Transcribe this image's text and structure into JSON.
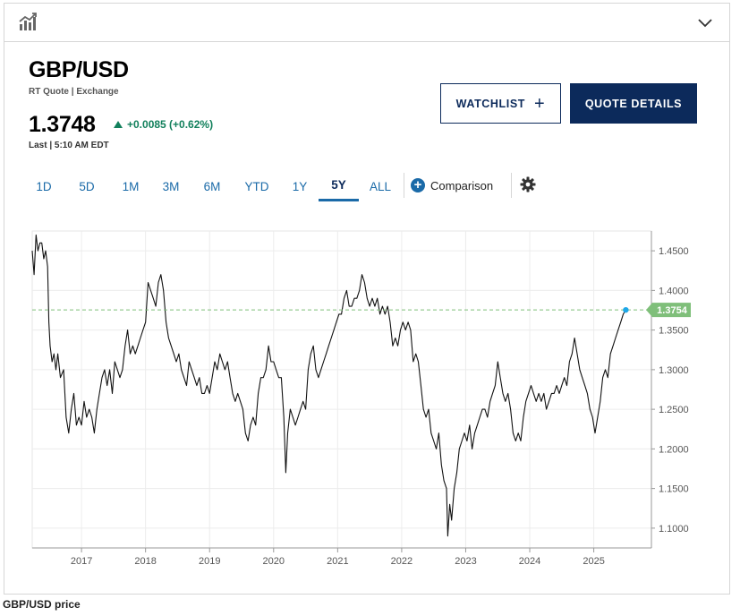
{
  "icons": {
    "chart": "chart-icon",
    "collapse": "chevron-down-icon",
    "settings": "gear-icon",
    "add": "plus-icon"
  },
  "quote": {
    "symbol": "GBP/USD",
    "quote_type": "RT Quote | Exchange",
    "price": "1.3748",
    "change": "+0.0085 (+0.62%)",
    "timestamp": "Last | 5:10 AM EDT",
    "change_color": "#12805c"
  },
  "buttons": {
    "watchlist": "WATCHLIST",
    "quote_details": "QUOTE DETAILS"
  },
  "ranges": [
    "1D",
    "5D",
    "1M",
    "3M",
    "6M",
    "YTD",
    "1Y",
    "5Y",
    "ALL"
  ],
  "active_range": "5Y",
  "comparison_label": "Comparison",
  "caption": "GBP/USD price",
  "colors": {
    "brand_navy": "#0c2a5b",
    "link_blue": "#1a6aa8",
    "last_price_badge": "#7fbf7a",
    "line": "#111111"
  },
  "chart_data": {
    "type": "line",
    "title": "",
    "xlabel": "",
    "ylabel": "",
    "x_ticks": [
      "2017",
      "2018",
      "2019",
      "2020",
      "2021",
      "2022",
      "2023",
      "2024",
      "2025"
    ],
    "y_ticks": [
      "1.4500",
      "1.4000",
      "1.3500",
      "1.3000",
      "1.2500",
      "1.2000",
      "1.1500",
      "1.1000"
    ],
    "xlim": [
      2016.23,
      2025.9
    ],
    "ylim": [
      1.075,
      1.475
    ],
    "grid": true,
    "last_value_label": "1.3754",
    "last_value": 1.3754,
    "series": [
      {
        "points": [
          [
            2016.23,
            1.45
          ],
          [
            2016.26,
            1.42
          ],
          [
            2016.29,
            1.47
          ],
          [
            2016.32,
            1.45
          ],
          [
            2016.35,
            1.46
          ],
          [
            2016.38,
            1.46
          ],
          [
            2016.41,
            1.44
          ],
          [
            2016.44,
            1.45
          ],
          [
            2016.47,
            1.43
          ],
          [
            2016.49,
            1.36
          ],
          [
            2016.51,
            1.33
          ],
          [
            2016.54,
            1.31
          ],
          [
            2016.57,
            1.32
          ],
          [
            2016.6,
            1.3
          ],
          [
            2016.63,
            1.32
          ],
          [
            2016.67,
            1.29
          ],
          [
            2016.72,
            1.3
          ],
          [
            2016.76,
            1.24
          ],
          [
            2016.8,
            1.22
          ],
          [
            2016.84,
            1.25
          ],
          [
            2016.88,
            1.27
          ],
          [
            2016.92,
            1.23
          ],
          [
            2016.96,
            1.24
          ],
          [
            2017.0,
            1.23
          ],
          [
            2017.04,
            1.26
          ],
          [
            2017.08,
            1.24
          ],
          [
            2017.12,
            1.25
          ],
          [
            2017.16,
            1.24
          ],
          [
            2017.2,
            1.22
          ],
          [
            2017.24,
            1.25
          ],
          [
            2017.28,
            1.27
          ],
          [
            2017.32,
            1.29
          ],
          [
            2017.36,
            1.3
          ],
          [
            2017.4,
            1.28
          ],
          [
            2017.44,
            1.3
          ],
          [
            2017.48,
            1.27
          ],
          [
            2017.52,
            1.31
          ],
          [
            2017.56,
            1.3
          ],
          [
            2017.6,
            1.29
          ],
          [
            2017.64,
            1.3
          ],
          [
            2017.68,
            1.33
          ],
          [
            2017.72,
            1.35
          ],
          [
            2017.76,
            1.32
          ],
          [
            2017.8,
            1.33
          ],
          [
            2017.84,
            1.32
          ],
          [
            2017.88,
            1.33
          ],
          [
            2017.92,
            1.34
          ],
          [
            2017.96,
            1.35
          ],
          [
            2018.0,
            1.36
          ],
          [
            2018.04,
            1.41
          ],
          [
            2018.08,
            1.4
          ],
          [
            2018.12,
            1.39
          ],
          [
            2018.16,
            1.38
          ],
          [
            2018.2,
            1.41
          ],
          [
            2018.24,
            1.42
          ],
          [
            2018.28,
            1.4
          ],
          [
            2018.32,
            1.36
          ],
          [
            2018.36,
            1.34
          ],
          [
            2018.4,
            1.33
          ],
          [
            2018.44,
            1.32
          ],
          [
            2018.48,
            1.31
          ],
          [
            2018.52,
            1.32
          ],
          [
            2018.56,
            1.3
          ],
          [
            2018.6,
            1.29
          ],
          [
            2018.64,
            1.28
          ],
          [
            2018.68,
            1.31
          ],
          [
            2018.72,
            1.3
          ],
          [
            2018.76,
            1.29
          ],
          [
            2018.8,
            1.28
          ],
          [
            2018.84,
            1.29
          ],
          [
            2018.88,
            1.27
          ],
          [
            2018.92,
            1.27
          ],
          [
            2018.96,
            1.28
          ],
          [
            2019.0,
            1.27
          ],
          [
            2019.04,
            1.29
          ],
          [
            2019.08,
            1.31
          ],
          [
            2019.12,
            1.3
          ],
          [
            2019.16,
            1.32
          ],
          [
            2019.2,
            1.31
          ],
          [
            2019.24,
            1.3
          ],
          [
            2019.28,
            1.31
          ],
          [
            2019.32,
            1.29
          ],
          [
            2019.36,
            1.27
          ],
          [
            2019.4,
            1.26
          ],
          [
            2019.44,
            1.27
          ],
          [
            2019.48,
            1.26
          ],
          [
            2019.52,
            1.25
          ],
          [
            2019.56,
            1.22
          ],
          [
            2019.6,
            1.21
          ],
          [
            2019.64,
            1.23
          ],
          [
            2019.68,
            1.24
          ],
          [
            2019.72,
            1.23
          ],
          [
            2019.76,
            1.27
          ],
          [
            2019.8,
            1.29
          ],
          [
            2019.84,
            1.29
          ],
          [
            2019.88,
            1.3
          ],
          [
            2019.92,
            1.33
          ],
          [
            2019.96,
            1.31
          ],
          [
            2020.0,
            1.31
          ],
          [
            2020.04,
            1.3
          ],
          [
            2020.08,
            1.29
          ],
          [
            2020.12,
            1.29
          ],
          [
            2020.16,
            1.24
          ],
          [
            2020.19,
            1.17
          ],
          [
            2020.22,
            1.22
          ],
          [
            2020.26,
            1.25
          ],
          [
            2020.3,
            1.24
          ],
          [
            2020.34,
            1.23
          ],
          [
            2020.38,
            1.24
          ],
          [
            2020.42,
            1.25
          ],
          [
            2020.46,
            1.26
          ],
          [
            2020.5,
            1.25
          ],
          [
            2020.54,
            1.3
          ],
          [
            2020.58,
            1.32
          ],
          [
            2020.62,
            1.33
          ],
          [
            2020.66,
            1.3
          ],
          [
            2020.7,
            1.29
          ],
          [
            2020.74,
            1.3
          ],
          [
            2020.78,
            1.31
          ],
          [
            2020.82,
            1.32
          ],
          [
            2020.86,
            1.33
          ],
          [
            2020.9,
            1.34
          ],
          [
            2020.94,
            1.35
          ],
          [
            2020.98,
            1.36
          ],
          [
            2021.02,
            1.37
          ],
          [
            2021.06,
            1.37
          ],
          [
            2021.1,
            1.39
          ],
          [
            2021.14,
            1.4
          ],
          [
            2021.18,
            1.38
          ],
          [
            2021.22,
            1.38
          ],
          [
            2021.26,
            1.39
          ],
          [
            2021.3,
            1.39
          ],
          [
            2021.34,
            1.4
          ],
          [
            2021.38,
            1.42
          ],
          [
            2021.42,
            1.41
          ],
          [
            2021.46,
            1.39
          ],
          [
            2021.5,
            1.38
          ],
          [
            2021.54,
            1.39
          ],
          [
            2021.58,
            1.38
          ],
          [
            2021.62,
            1.39
          ],
          [
            2021.66,
            1.37
          ],
          [
            2021.7,
            1.38
          ],
          [
            2021.74,
            1.37
          ],
          [
            2021.78,
            1.38
          ],
          [
            2021.82,
            1.36
          ],
          [
            2021.86,
            1.33
          ],
          [
            2021.9,
            1.34
          ],
          [
            2021.94,
            1.33
          ],
          [
            2021.98,
            1.35
          ],
          [
            2022.02,
            1.36
          ],
          [
            2022.06,
            1.35
          ],
          [
            2022.1,
            1.36
          ],
          [
            2022.14,
            1.35
          ],
          [
            2022.18,
            1.31
          ],
          [
            2022.22,
            1.32
          ],
          [
            2022.26,
            1.31
          ],
          [
            2022.3,
            1.28
          ],
          [
            2022.34,
            1.25
          ],
          [
            2022.38,
            1.24
          ],
          [
            2022.42,
            1.25
          ],
          [
            2022.46,
            1.22
          ],
          [
            2022.5,
            1.21
          ],
          [
            2022.54,
            1.2
          ],
          [
            2022.58,
            1.22
          ],
          [
            2022.62,
            1.18
          ],
          [
            2022.66,
            1.16
          ],
          [
            2022.7,
            1.15
          ],
          [
            2022.72,
            1.09
          ],
          [
            2022.75,
            1.13
          ],
          [
            2022.78,
            1.11
          ],
          [
            2022.82,
            1.15
          ],
          [
            2022.86,
            1.17
          ],
          [
            2022.9,
            1.2
          ],
          [
            2022.94,
            1.21
          ],
          [
            2022.98,
            1.22
          ],
          [
            2023.02,
            1.21
          ],
          [
            2023.06,
            1.23
          ],
          [
            2023.1,
            1.2
          ],
          [
            2023.14,
            1.22
          ],
          [
            2023.18,
            1.23
          ],
          [
            2023.22,
            1.24
          ],
          [
            2023.26,
            1.25
          ],
          [
            2023.3,
            1.25
          ],
          [
            2023.34,
            1.24
          ],
          [
            2023.38,
            1.26
          ],
          [
            2023.42,
            1.27
          ],
          [
            2023.46,
            1.28
          ],
          [
            2023.5,
            1.31
          ],
          [
            2023.54,
            1.29
          ],
          [
            2023.58,
            1.27
          ],
          [
            2023.62,
            1.26
          ],
          [
            2023.66,
            1.27
          ],
          [
            2023.7,
            1.25
          ],
          [
            2023.74,
            1.22
          ],
          [
            2023.78,
            1.21
          ],
          [
            2023.82,
            1.22
          ],
          [
            2023.86,
            1.21
          ],
          [
            2023.9,
            1.24
          ],
          [
            2023.94,
            1.26
          ],
          [
            2023.98,
            1.27
          ],
          [
            2024.02,
            1.28
          ],
          [
            2024.06,
            1.27
          ],
          [
            2024.1,
            1.26
          ],
          [
            2024.14,
            1.27
          ],
          [
            2024.18,
            1.26
          ],
          [
            2024.22,
            1.27
          ],
          [
            2024.26,
            1.25
          ],
          [
            2024.3,
            1.26
          ],
          [
            2024.34,
            1.27
          ],
          [
            2024.38,
            1.27
          ],
          [
            2024.42,
            1.28
          ],
          [
            2024.46,
            1.27
          ],
          [
            2024.5,
            1.28
          ],
          [
            2024.54,
            1.29
          ],
          [
            2024.58,
            1.28
          ],
          [
            2024.62,
            1.31
          ],
          [
            2024.66,
            1.32
          ],
          [
            2024.7,
            1.34
          ],
          [
            2024.74,
            1.32
          ],
          [
            2024.78,
            1.3
          ],
          [
            2024.82,
            1.29
          ],
          [
            2024.86,
            1.28
          ],
          [
            2024.9,
            1.27
          ],
          [
            2024.94,
            1.25
          ],
          [
            2024.98,
            1.24
          ],
          [
            2025.02,
            1.22
          ],
          [
            2025.06,
            1.24
          ],
          [
            2025.1,
            1.26
          ],
          [
            2025.14,
            1.29
          ],
          [
            2025.18,
            1.3
          ],
          [
            2025.22,
            1.29
          ],
          [
            2025.26,
            1.32
          ],
          [
            2025.3,
            1.33
          ],
          [
            2025.34,
            1.34
          ],
          [
            2025.38,
            1.35
          ],
          [
            2025.42,
            1.36
          ],
          [
            2025.46,
            1.37
          ],
          [
            2025.5,
            1.3754
          ]
        ]
      }
    ]
  }
}
